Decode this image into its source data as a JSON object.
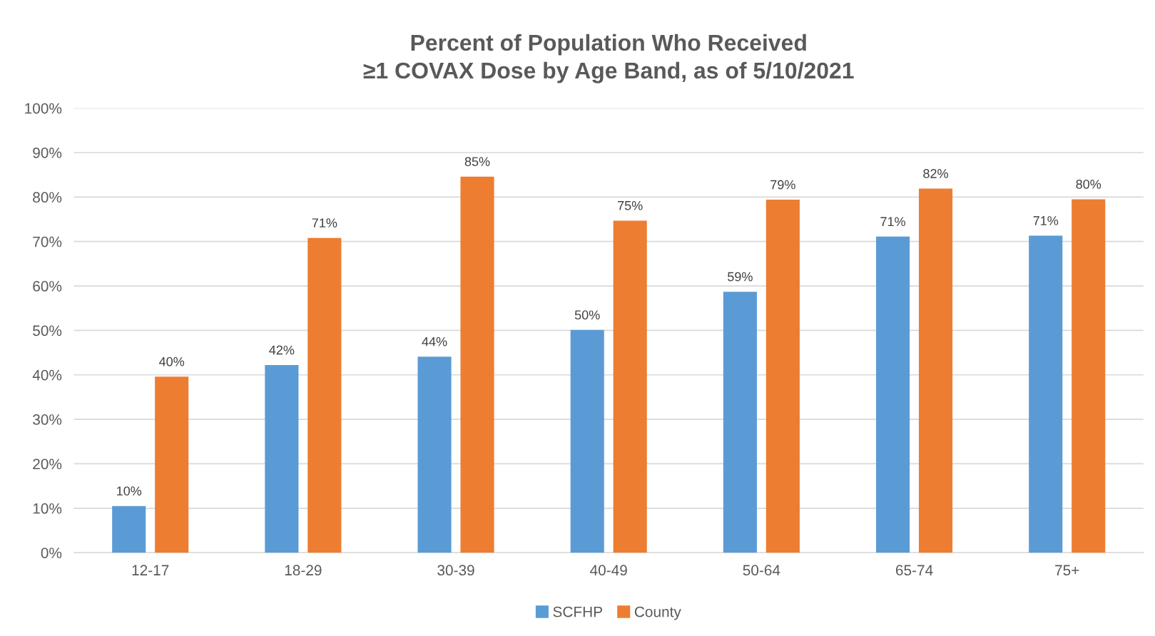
{
  "chart_data": {
    "type": "bar",
    "title": "Percent of Population Who Received\n≥1 COVAX Dose by Age Band, as of 5/10/2021",
    "categories": [
      "12-17",
      "18-29",
      "30-39",
      "40-49",
      "50-64",
      "65-74",
      "75+"
    ],
    "series": [
      {
        "name": "SCFHP",
        "color": "#5b9bd5",
        "values": [
          10.5,
          42.2,
          44.1,
          50.1,
          58.7,
          71.1,
          71.3
        ],
        "value_labels": [
          "10%",
          "42%",
          "44%",
          "50%",
          "59%",
          "71%",
          "71%"
        ]
      },
      {
        "name": "County",
        "color": "#ed7d31",
        "values": [
          39.6,
          70.8,
          84.6,
          74.7,
          79.4,
          81.9,
          79.5
        ],
        "value_labels": [
          "40%",
          "71%",
          "85%",
          "75%",
          "79%",
          "82%",
          "80%"
        ]
      }
    ],
    "ylim": [
      0,
      100
    ],
    "yticks": [
      {
        "value": 0,
        "label": "0%"
      },
      {
        "value": 10,
        "label": "10%"
      },
      {
        "value": 20,
        "label": "20%"
      },
      {
        "value": 30,
        "label": "30%"
      },
      {
        "value": 40,
        "label": "40%"
      },
      {
        "value": 50,
        "label": "50%"
      },
      {
        "value": 60,
        "label": "60%"
      },
      {
        "value": 70,
        "label": "70%"
      },
      {
        "value": 80,
        "label": "80%"
      },
      {
        "value": 90,
        "label": "90%"
      },
      {
        "value": 100,
        "label": "100%"
      }
    ],
    "grid": "y",
    "legend": "bottom"
  }
}
